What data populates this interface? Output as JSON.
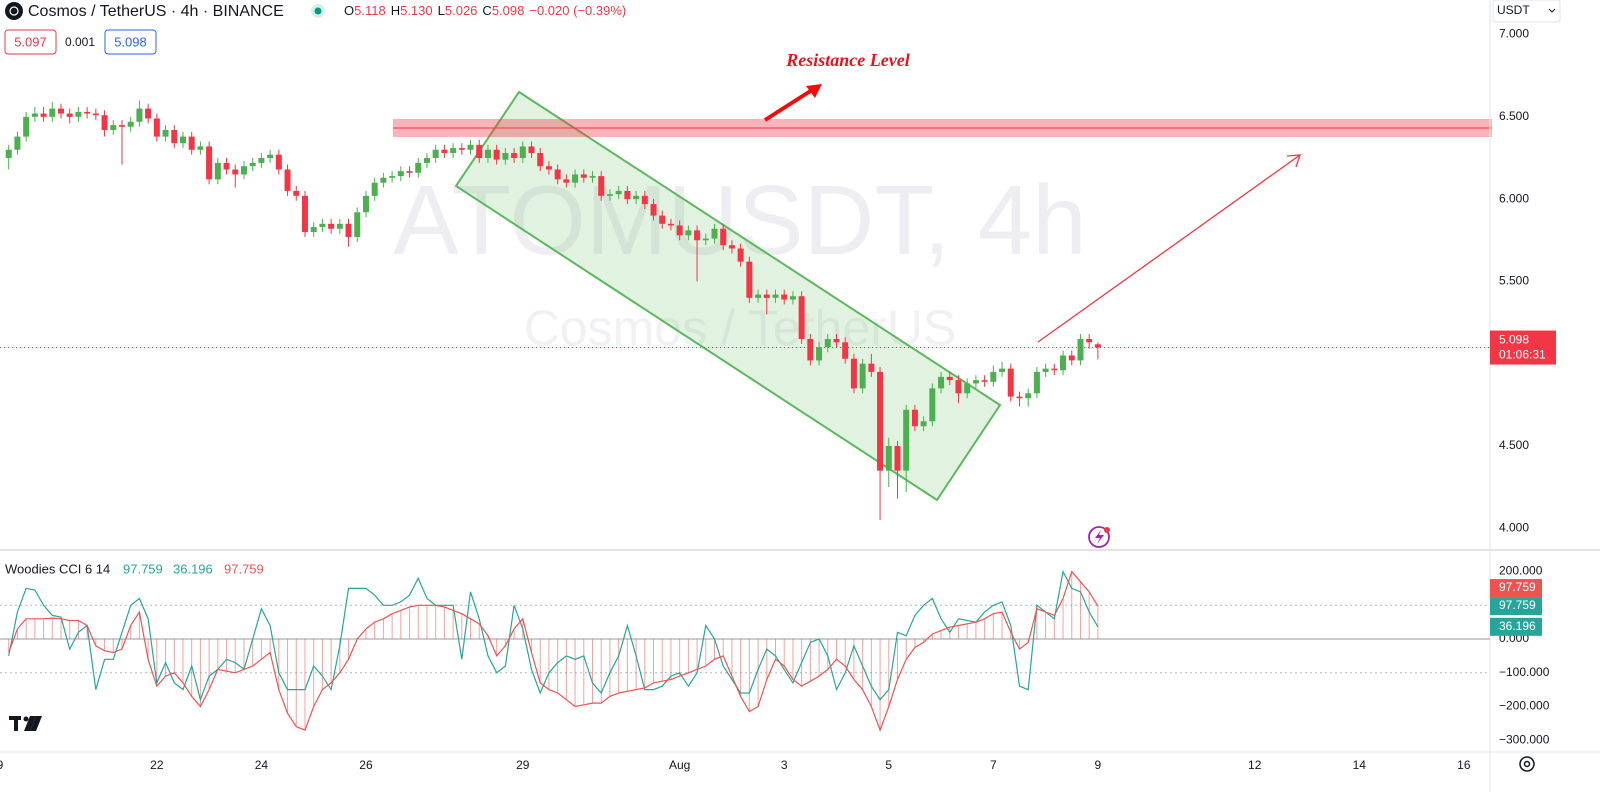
{
  "chart_data": [
    {
      "type": "candlestick",
      "symbol_title": "Cosmos / TetherUS · 4h · BINANCE",
      "ohlc_prefixes": [
        "O",
        "H",
        "L",
        "C"
      ],
      "last_ohlc_labels": [
        "5.118",
        "5.130",
        "5.026",
        "5.098"
      ],
      "change_text": "−0.020 (−0.39%)",
      "quote_boxes": [
        "5.097",
        "0.001",
        "5.098"
      ],
      "currency": "USDT",
      "watermark": [
        "ATOMUSDT, 4h",
        "Cosmos / TetherUS"
      ],
      "annotation": "Resistance Level",
      "last_price_label": "5.098",
      "countdown": "01:06:31",
      "up_color": "#4caf50",
      "down_color": "#f23645",
      "grid": false,
      "xlim": [
        -1,
        170
      ],
      "xticks": [
        {
          "value": -1,
          "label": "9"
        },
        {
          "value": 17,
          "label": "22"
        },
        {
          "value": 29,
          "label": "24"
        },
        {
          "value": 41,
          "label": "26"
        },
        {
          "value": 59,
          "label": "29"
        },
        {
          "value": 77,
          "label": "Aug"
        },
        {
          "value": 89,
          "label": "3"
        },
        {
          "value": 101,
          "label": "5"
        },
        {
          "value": 113,
          "label": "7"
        },
        {
          "value": 125,
          "label": "9"
        },
        {
          "value": 143,
          "label": "12"
        },
        {
          "value": 155,
          "label": "14"
        },
        {
          "value": 167,
          "label": "16"
        }
      ],
      "ylim": [
        3.88,
        7.21
      ],
      "yticks": [
        {
          "value": 7,
          "label": "7.000"
        },
        {
          "value": 6.5,
          "label": "6.500"
        },
        {
          "value": 6,
          "label": "6.000"
        },
        {
          "value": 5.5,
          "label": "5.500"
        },
        {
          "value": 4.5,
          "label": "4.500"
        },
        {
          "value": 4,
          "label": "4.000"
        }
      ],
      "ohlc": [
        [
          6.25,
          6.33,
          6.18,
          6.3
        ],
        [
          6.3,
          6.41,
          6.27,
          6.38
        ],
        [
          6.38,
          6.53,
          6.35,
          6.5
        ],
        [
          6.5,
          6.56,
          6.47,
          6.52
        ],
        [
          6.52,
          6.56,
          6.47,
          6.5
        ],
        [
          6.5,
          6.59,
          6.47,
          6.55
        ],
        [
          6.55,
          6.58,
          6.49,
          6.52
        ],
        [
          6.52,
          6.55,
          6.46,
          6.5
        ],
        [
          6.5,
          6.56,
          6.47,
          6.53
        ],
        [
          6.53,
          6.56,
          6.49,
          6.52
        ],
        [
          6.52,
          6.55,
          6.48,
          6.51
        ],
        [
          6.51,
          6.54,
          6.38,
          6.42
        ],
        [
          6.42,
          6.48,
          6.39,
          6.45
        ],
        [
          6.45,
          6.48,
          6.21,
          6.44
        ],
        [
          6.44,
          6.5,
          6.41,
          6.47
        ],
        [
          6.47,
          6.6,
          6.44,
          6.55
        ],
        [
          6.55,
          6.58,
          6.46,
          6.49
        ],
        [
          6.49,
          6.52,
          6.35,
          6.38
        ],
        [
          6.38,
          6.45,
          6.35,
          6.42
        ],
        [
          6.42,
          6.45,
          6.31,
          6.34
        ],
        [
          6.34,
          6.41,
          6.31,
          6.38
        ],
        [
          6.38,
          6.41,
          6.27,
          6.3
        ],
        [
          6.3,
          6.35,
          6.27,
          6.32
        ],
        [
          6.32,
          6.35,
          6.09,
          6.12
        ],
        [
          6.12,
          6.25,
          6.09,
          6.22
        ],
        [
          6.22,
          6.25,
          6.15,
          6.18
        ],
        [
          6.18,
          6.21,
          6.07,
          6.15
        ],
        [
          6.15,
          6.23,
          6.12,
          6.2
        ],
        [
          6.2,
          6.25,
          6.17,
          6.22
        ],
        [
          6.22,
          6.28,
          6.19,
          6.25
        ],
        [
          6.25,
          6.3,
          6.22,
          6.27
        ],
        [
          6.27,
          6.3,
          6.15,
          6.18
        ],
        [
          6.18,
          6.21,
          6.02,
          6.05
        ],
        [
          6.05,
          6.08,
          5.99,
          6.02
        ],
        [
          6.02,
          6.05,
          5.77,
          5.8
        ],
        [
          5.8,
          5.86,
          5.77,
          5.83
        ],
        [
          5.83,
          5.88,
          5.8,
          5.85
        ],
        [
          5.85,
          5.88,
          5.79,
          5.82
        ],
        [
          5.82,
          5.88,
          5.79,
          5.85
        ],
        [
          5.85,
          5.88,
          5.71,
          5.77
        ],
        [
          5.77,
          5.95,
          5.74,
          5.92
        ],
        [
          5.92,
          6.05,
          5.89,
          6.02
        ],
        [
          6.02,
          6.13,
          5.99,
          6.1
        ],
        [
          6.1,
          6.16,
          6.07,
          6.13
        ],
        [
          6.13,
          6.17,
          6.1,
          6.14
        ],
        [
          6.14,
          6.2,
          6.11,
          6.17
        ],
        [
          6.17,
          6.2,
          6.13,
          6.16
        ],
        [
          6.16,
          6.25,
          6.13,
          6.22
        ],
        [
          6.22,
          6.28,
          6.19,
          6.25
        ],
        [
          6.25,
          6.33,
          6.22,
          6.3
        ],
        [
          6.3,
          6.33,
          6.25,
          6.28
        ],
        [
          6.28,
          6.34,
          6.25,
          6.31
        ],
        [
          6.31,
          6.34,
          6.27,
          6.3
        ],
        [
          6.3,
          6.36,
          6.27,
          6.33
        ],
        [
          6.33,
          6.36,
          6.22,
          6.25
        ],
        [
          6.25,
          6.33,
          6.22,
          6.3
        ],
        [
          6.3,
          6.33,
          6.21,
          6.24
        ],
        [
          6.24,
          6.31,
          6.21,
          6.28
        ],
        [
          6.28,
          6.31,
          6.22,
          6.25
        ],
        [
          6.25,
          6.35,
          6.22,
          6.32
        ],
        [
          6.32,
          6.35,
          6.25,
          6.28
        ],
        [
          6.28,
          6.31,
          6.17,
          6.2
        ],
        [
          6.2,
          6.23,
          6.15,
          6.18
        ],
        [
          6.18,
          6.21,
          6.09,
          6.12
        ],
        [
          6.12,
          6.15,
          6.07,
          6.1
        ],
        [
          6.1,
          6.18,
          6.07,
          6.15
        ],
        [
          6.15,
          6.18,
          6.1,
          6.13
        ],
        [
          6.13,
          6.17,
          6.1,
          6.14
        ],
        [
          6.14,
          6.17,
          5.99,
          6.02
        ],
        [
          6.02,
          6.06,
          5.99,
          6.03
        ],
        [
          6.03,
          6.08,
          6.0,
          6.05
        ],
        [
          6.05,
          6.08,
          5.97,
          6.0
        ],
        [
          6.0,
          6.05,
          5.97,
          6.02
        ],
        [
          6.02,
          6.05,
          5.94,
          5.97
        ],
        [
          5.97,
          6.0,
          5.87,
          5.9
        ],
        [
          5.9,
          5.93,
          5.82,
          5.85
        ],
        [
          5.85,
          5.88,
          5.81,
          5.84
        ],
        [
          5.84,
          5.87,
          5.75,
          5.78
        ],
        [
          5.78,
          5.84,
          5.75,
          5.81
        ],
        [
          5.81,
          5.84,
          5.5,
          5.75
        ],
        [
          5.75,
          5.79,
          5.72,
          5.76
        ],
        [
          5.76,
          5.85,
          5.73,
          5.82
        ],
        [
          5.82,
          5.85,
          5.69,
          5.72
        ],
        [
          5.72,
          5.75,
          5.67,
          5.7
        ],
        [
          5.7,
          5.73,
          5.59,
          5.62
        ],
        [
          5.62,
          5.65,
          5.37,
          5.4
        ],
        [
          5.4,
          5.45,
          5.37,
          5.42
        ],
        [
          5.42,
          5.45,
          5.3,
          5.4
        ],
        [
          5.4,
          5.45,
          5.37,
          5.42
        ],
        [
          5.42,
          5.45,
          5.36,
          5.39
        ],
        [
          5.39,
          5.44,
          5.36,
          5.41
        ],
        [
          5.41,
          5.44,
          5.12,
          5.15
        ],
        [
          5.15,
          5.18,
          4.99,
          5.02
        ],
        [
          5.02,
          5.13,
          4.99,
          5.1
        ],
        [
          5.1,
          5.18,
          5.07,
          5.15
        ],
        [
          5.15,
          5.18,
          5.1,
          5.13
        ],
        [
          5.13,
          5.16,
          5.0,
          5.03
        ],
        [
          5.03,
          5.06,
          4.82,
          4.85
        ],
        [
          4.85,
          5.03,
          4.82,
          5.0
        ],
        [
          5.0,
          5.06,
          4.92,
          4.95
        ],
        [
          4.95,
          4.98,
          4.05,
          4.35
        ],
        [
          4.35,
          4.55,
          4.25,
          4.5
        ],
        [
          4.5,
          4.53,
          4.18,
          4.35
        ],
        [
          4.35,
          4.75,
          4.22,
          4.72
        ],
        [
          4.72,
          4.75,
          4.59,
          4.62
        ],
        [
          4.62,
          4.68,
          4.59,
          4.65
        ],
        [
          4.65,
          4.88,
          4.62,
          4.85
        ],
        [
          4.85,
          4.95,
          4.82,
          4.92
        ],
        [
          4.92,
          4.95,
          4.87,
          4.9
        ],
        [
          4.9,
          4.93,
          4.76,
          4.82
        ],
        [
          4.82,
          4.91,
          4.79,
          4.88
        ],
        [
          4.88,
          4.93,
          4.85,
          4.9
        ],
        [
          4.9,
          4.93,
          4.86,
          4.89
        ],
        [
          4.89,
          4.99,
          4.86,
          4.95
        ],
        [
          4.95,
          5.01,
          4.92,
          4.97
        ],
        [
          4.97,
          5.0,
          4.77,
          4.8
        ],
        [
          4.8,
          4.83,
          4.74,
          4.79
        ],
        [
          4.79,
          4.85,
          4.74,
          4.82
        ],
        [
          4.82,
          4.98,
          4.79,
          4.95
        ],
        [
          4.95,
          5.0,
          4.92,
          4.97
        ],
        [
          4.97,
          5.0,
          4.93,
          4.96
        ],
        [
          4.96,
          5.08,
          4.93,
          5.05
        ],
        [
          5.05,
          5.08,
          4.99,
          5.02
        ],
        [
          5.02,
          5.18,
          4.99,
          5.15
        ],
        [
          5.15,
          5.18,
          5.09,
          5.13
        ],
        [
          5.118,
          5.13,
          5.026,
          5.098
        ]
      ]
    },
    {
      "type": "line",
      "title": "Woodies CCI 6 14",
      "ylim": [
        -329,
        258
      ],
      "yticks": [
        {
          "value": 200,
          "label": "200.000"
        },
        {
          "value": 100,
          "label": "100.000"
        },
        {
          "value": 0,
          "label": "0.000"
        },
        {
          "value": -100,
          "label": "−100.000"
        },
        {
          "value": -200,
          "label": "−200.000"
        },
        {
          "value": -300,
          "label": "−300.000"
        }
      ],
      "series": [
        {
          "color": "#26a69a",
          "values": [
            -50,
            80,
            150,
            145,
            100,
            70,
            65,
            -30,
            20,
            40,
            -150,
            -60,
            -60,
            20,
            100,
            120,
            60,
            -130,
            -70,
            -130,
            -150,
            -80,
            -180,
            -110,
            -90,
            -60,
            -70,
            -90,
            0,
            90,
            40,
            -100,
            -150,
            -150,
            -150,
            -80,
            -110,
            -150,
            -20,
            150,
            150,
            150,
            130,
            100,
            100,
            110,
            130,
            180,
            120,
            100,
            100,
            100,
            -60,
            140,
            60,
            -50,
            -100,
            -80,
            100,
            30,
            -90,
            -160,
            -100,
            -70,
            -50,
            -60,
            -50,
            -130,
            -160,
            -100,
            -50,
            40,
            -50,
            -150,
            -150,
            -140,
            -110,
            -100,
            -140,
            -100,
            40,
            0,
            -80,
            -120,
            -160,
            -160,
            -90,
            -30,
            -50,
            -90,
            -130,
            -70,
            -10,
            0,
            -50,
            -150,
            -100,
            -20,
            -80,
            -140,
            -180,
            -150,
            20,
            10,
            70,
            100,
            120,
            60,
            20,
            60,
            55,
            50,
            80,
            100,
            110,
            40,
            -140,
            -150,
            100,
            80,
            60,
            200,
            150,
            140,
            80,
            36.196
          ]
        },
        {
          "color": "#ef5350",
          "values": [
            -40,
            30,
            60,
            60,
            60,
            62,
            60,
            55,
            55,
            40,
            -20,
            -35,
            -40,
            -30,
            40,
            80,
            -60,
            -140,
            -110,
            -100,
            -130,
            -170,
            -200,
            -150,
            -90,
            -95,
            -100,
            -90,
            -80,
            -60,
            -40,
            -150,
            -220,
            -260,
            -270,
            -200,
            -150,
            -130,
            -100,
            -60,
            0,
            30,
            50,
            60,
            75,
            85,
            95,
            100,
            100,
            100,
            95,
            85,
            75,
            60,
            45,
            10,
            -50,
            -20,
            30,
            60,
            -40,
            -130,
            -150,
            -160,
            -180,
            -200,
            -195,
            -190,
            -190,
            -170,
            -160,
            -155,
            -150,
            -145,
            -130,
            -125,
            -120,
            -110,
            -100,
            -90,
            -80,
            -60,
            -50,
            -110,
            -170,
            -215,
            -200,
            -120,
            -60,
            -80,
            -120,
            -140,
            -125,
            -110,
            -90,
            -60,
            -80,
            -120,
            -150,
            -200,
            -270,
            -200,
            -120,
            -60,
            -25,
            -10,
            15,
            25,
            35,
            40,
            45,
            50,
            60,
            75,
            80,
            20,
            -30,
            -10,
            90,
            80,
            70,
            120,
            200,
            170,
            140,
            97.759
          ]
        }
      ]
    }
  ]
}
